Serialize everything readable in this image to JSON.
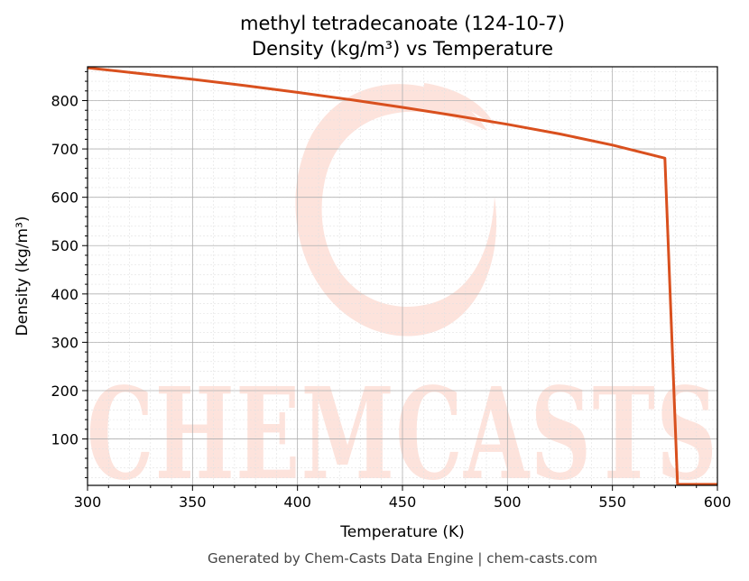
{
  "colors": {
    "series": "#d9501e",
    "watermark": "#fde3dc",
    "grid_major": "#b0b0b0",
    "grid_minor": "#e2e2e2",
    "footer": "#444444"
  },
  "watermark": {
    "text": "CHEMCASTS",
    "icon": "chemcasts-swirl-logo"
  },
  "footer": "Generated by Chem-Casts Data Engine | chem-casts.com",
  "chart_data": {
    "type": "line",
    "title": "methyl tetradecanoate (124-10-7)",
    "subtitle": "Density (kg/m³) vs Temperature",
    "xlabel": "Temperature (K)",
    "ylabel": "Density (kg/m³)",
    "xlim": [
      300,
      600
    ],
    "ylim": [
      4,
      870
    ],
    "x_ticks": [
      300,
      350,
      400,
      450,
      500,
      550,
      600
    ],
    "y_ticks": [
      100,
      200,
      300,
      400,
      500,
      600,
      700,
      800
    ],
    "grid": true,
    "minor_grid": true,
    "series": [
      {
        "x": [
          300,
          325,
          350,
          375,
          400,
          425,
          450,
          475,
          500,
          525,
          550,
          575,
          581,
          600
        ],
        "y": [
          868,
          856,
          844,
          831,
          817,
          802,
          786,
          769,
          751,
          731,
          708,
          681,
          6,
          6
        ]
      }
    ]
  }
}
